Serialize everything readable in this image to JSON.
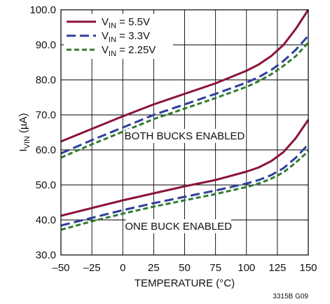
{
  "chart_data": {
    "type": "line",
    "xlabel": "TEMPERATURE (°C)",
    "ylabel": {
      "main": "I",
      "sub": "VIN",
      "unit": " (µA)"
    },
    "xlim": [
      -50,
      150
    ],
    "ylim": [
      30,
      100
    ],
    "x_ticks": [
      -50,
      -25,
      0,
      25,
      50,
      75,
      100,
      125,
      150
    ],
    "x_tick_labels": [
      "–50",
      "–25",
      "0",
      "25",
      "50",
      "75",
      "100",
      "125",
      "150"
    ],
    "y_ticks": [
      30,
      40,
      50,
      60,
      70,
      80,
      90,
      100
    ],
    "y_tick_labels": [
      "30.0",
      "40.0",
      "50.0",
      "60.0",
      "70.0",
      "80.0",
      "90.0",
      "100.0"
    ],
    "grid": true,
    "legend_placement": "top-left",
    "annotations": [
      {
        "text": "BOTH BUCKS ENABLED",
        "x": 50,
        "y": 64
      },
      {
        "text": "ONE BUCK ENABLED",
        "x": 45,
        "y": 38.2
      }
    ],
    "footnote": "3315B G09",
    "series": [
      {
        "name": {
          "main": "V",
          "sub": "IN",
          "rest": " = 5.5V"
        },
        "color": "#8b1538",
        "dash": "solid",
        "group": "both",
        "x": [
          -50,
          -25,
          0,
          25,
          50,
          75,
          100,
          110,
          120,
          130,
          140,
          150
        ],
        "y": [
          62.4,
          66.0,
          69.6,
          73.0,
          76.0,
          79.0,
          82.6,
          84.4,
          86.8,
          90.0,
          94.6,
          100.0
        ]
      },
      {
        "name": {
          "main": "V",
          "sub": "IN",
          "rest": " = 3.3V"
        },
        "color": "#2e3f9b",
        "dash": "longdash",
        "group": "both",
        "x": [
          -50,
          -25,
          0,
          25,
          50,
          75,
          100,
          110,
          120,
          130,
          140,
          150
        ],
        "y": [
          59.0,
          62.8,
          66.4,
          70.0,
          73.0,
          76.0,
          79.2,
          80.8,
          82.8,
          85.4,
          88.6,
          92.6
        ]
      },
      {
        "name": {
          "main": "V",
          "sub": "IN",
          "rest": " = 2.25V"
        },
        "color": "#2e7d32",
        "dash": "shortdash",
        "group": "both",
        "x": [
          -50,
          -25,
          0,
          25,
          50,
          75,
          100,
          110,
          120,
          130,
          140,
          150
        ],
        "y": [
          57.8,
          61.6,
          65.2,
          68.8,
          71.8,
          74.8,
          78.0,
          79.6,
          81.6,
          84.0,
          86.8,
          90.6
        ]
      },
      {
        "name": {
          "main": "V",
          "sub": "IN",
          "rest": " = 5.5V"
        },
        "color": "#8b1538",
        "dash": "solid",
        "group": "one",
        "x": [
          -50,
          -25,
          0,
          25,
          50,
          75,
          100,
          110,
          120,
          130,
          140,
          150
        ],
        "y": [
          41.2,
          43.4,
          45.6,
          47.6,
          49.6,
          51.4,
          53.8,
          55.0,
          56.8,
          59.4,
          63.4,
          68.6
        ]
      },
      {
        "name": {
          "main": "V",
          "sub": "IN",
          "rest": " = 3.3V"
        },
        "color": "#2e3f9b",
        "dash": "longdash",
        "group": "one",
        "x": [
          -50,
          -25,
          0,
          25,
          50,
          75,
          100,
          110,
          120,
          130,
          140,
          150
        ],
        "y": [
          38.4,
          40.6,
          42.8,
          44.8,
          46.6,
          48.4,
          50.4,
          51.4,
          52.8,
          54.8,
          57.8,
          61.6
        ]
      },
      {
        "name": {
          "main": "V",
          "sub": "IN",
          "rest": " = 2.25V"
        },
        "color": "#2e7d32",
        "dash": "shortdash",
        "group": "one",
        "x": [
          -50,
          -25,
          0,
          25,
          50,
          75,
          100,
          110,
          120,
          130,
          140,
          150
        ],
        "y": [
          37.2,
          39.6,
          41.8,
          43.8,
          45.6,
          47.4,
          49.4,
          50.4,
          51.8,
          53.6,
          56.4,
          59.6
        ]
      }
    ]
  }
}
